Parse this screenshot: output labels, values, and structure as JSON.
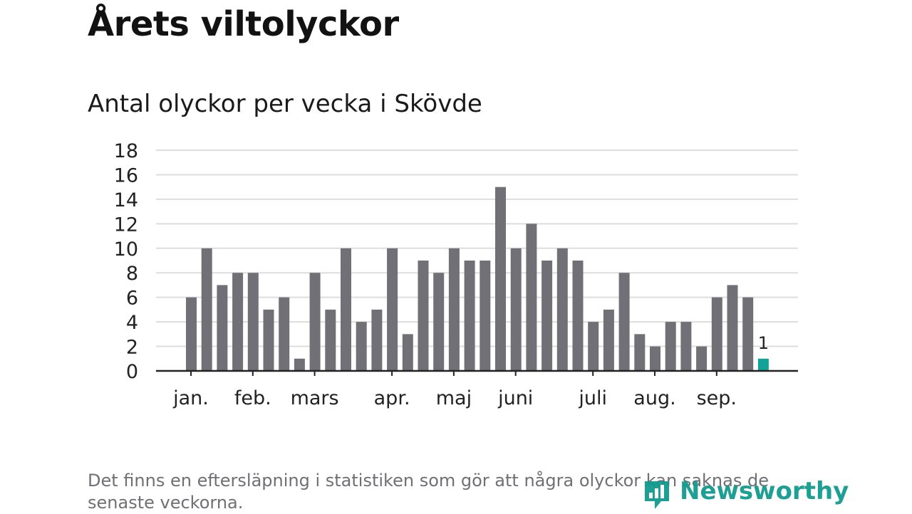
{
  "header": {
    "title": "Årets viltolyckor"
  },
  "footer": {
    "note": "Det finns en eftersläpning i statistiken som gör att några olyckor kan saknas de senaste veckorna.",
    "brand": "Newsworthy"
  },
  "colors": {
    "bar": "#717077",
    "highlight": "#13a296",
    "grid": "#dddddd",
    "axis": "#222222"
  },
  "chart_data": {
    "type": "bar",
    "title": "Antal olyckor per vecka i Skövde",
    "xlabel": "",
    "ylabel": "",
    "ylim": [
      0,
      18
    ],
    "yticks": [
      0,
      2,
      4,
      6,
      8,
      10,
      12,
      14,
      16,
      18
    ],
    "values": [
      6,
      10,
      7,
      8,
      8,
      5,
      6,
      1,
      8,
      5,
      10,
      4,
      5,
      10,
      3,
      9,
      8,
      10,
      9,
      9,
      15,
      10,
      12,
      9,
      10,
      9,
      4,
      5,
      8,
      3,
      2,
      4,
      4,
      2,
      6,
      7,
      6,
      1
    ],
    "highlight_index": 37,
    "highlight_label": "1",
    "month_labels": [
      {
        "label": "jan.",
        "week": 1
      },
      {
        "label": "feb.",
        "week": 5
      },
      {
        "label": "mars",
        "week": 9
      },
      {
        "label": "apr.",
        "week": 14
      },
      {
        "label": "maj",
        "week": 18
      },
      {
        "label": "juni",
        "week": 22
      },
      {
        "label": "juli",
        "week": 27
      },
      {
        "label": "aug.",
        "week": 31
      },
      {
        "label": "sep.",
        "week": 35
      }
    ]
  }
}
